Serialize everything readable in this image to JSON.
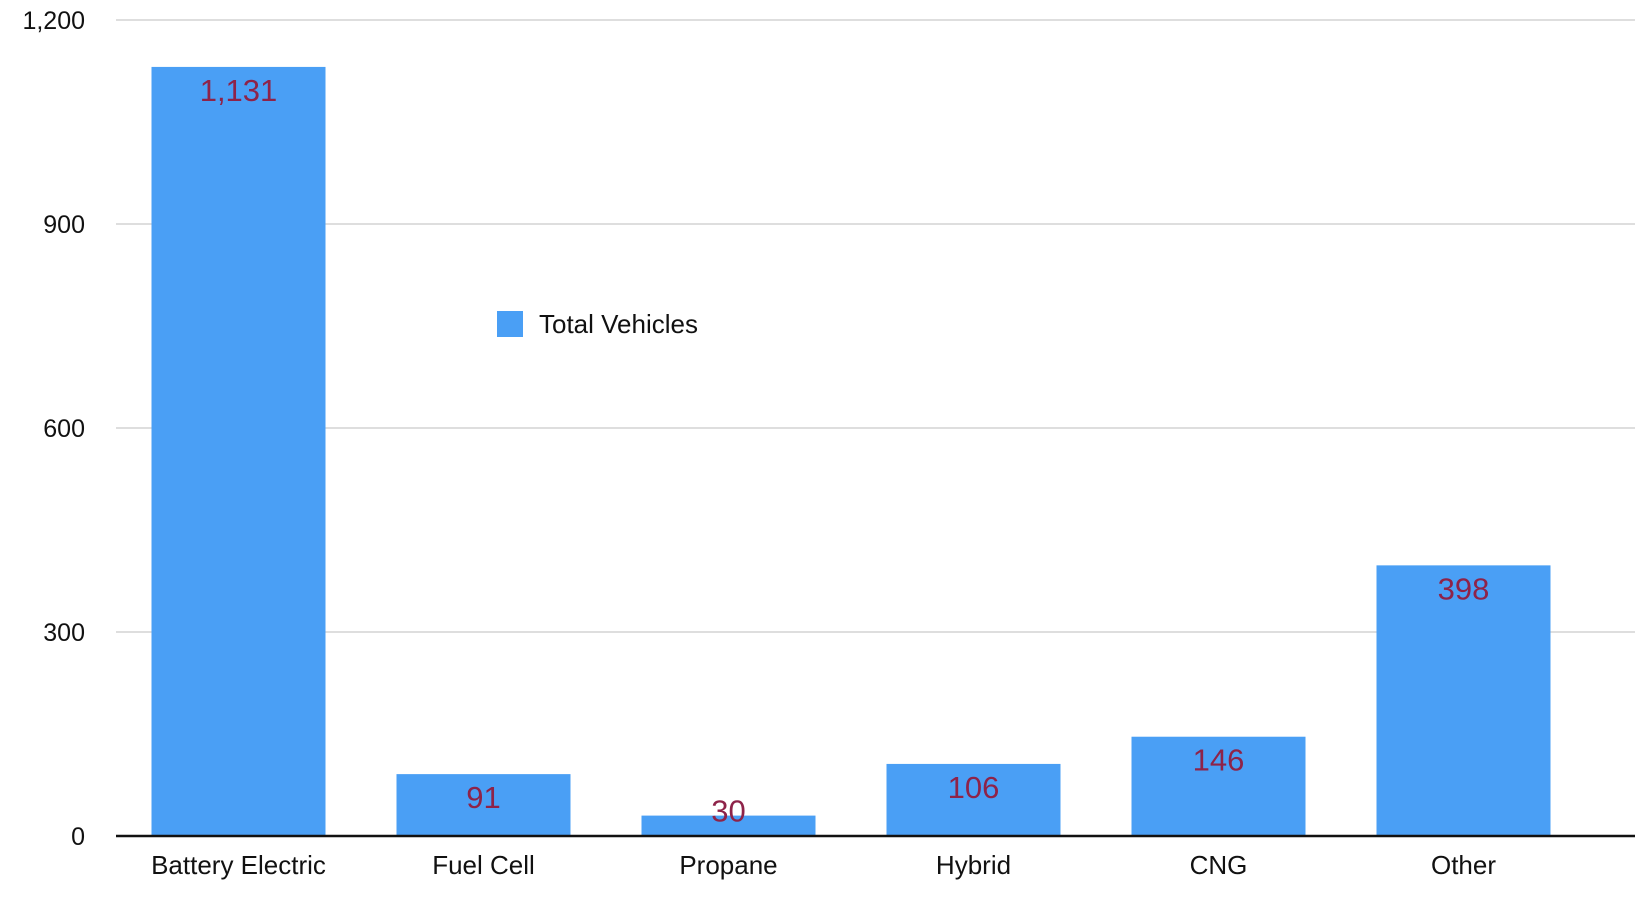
{
  "chart_data": {
    "type": "bar",
    "categories": [
      "Battery Electric",
      "Fuel Cell",
      "Propane",
      "Hybrid",
      "CNG",
      "Other"
    ],
    "series": [
      {
        "name": "Total Vehicles",
        "values": [
          1131,
          91,
          30,
          106,
          146,
          398
        ]
      }
    ],
    "data_labels": [
      "1,131",
      "91",
      "30",
      "106",
      "146",
      "398"
    ],
    "ylim": [
      0,
      1200
    ],
    "yticks": [
      0,
      300,
      600,
      900,
      1200
    ],
    "ytick_labels": [
      "0",
      "300",
      "600",
      "900",
      "1,200"
    ],
    "title": "",
    "xlabel": "",
    "ylabel": "",
    "grid": true,
    "legend_position": "upper-left inside plot",
    "colors": {
      "bar": "#4a9ff5",
      "data_label": "#8e2349",
      "grid": "#d4d4d4",
      "axis": "#111111",
      "text": "#111111"
    }
  }
}
